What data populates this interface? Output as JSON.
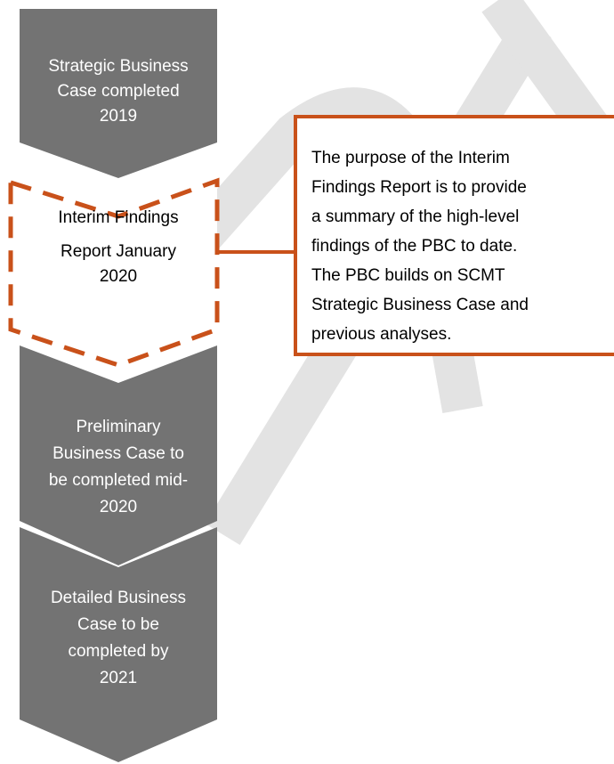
{
  "nodes": [
    {
      "lines": [
        "Strategic Business",
        "Case completed",
        "2019"
      ]
    },
    {
      "lines": [
        "Interim Findings",
        "Report January",
        "2020"
      ]
    },
    {
      "lines": [
        "Preliminary",
        "Business Case to",
        "be completed mid-",
        "2020"
      ]
    },
    {
      "lines": [
        "Detailed Business",
        "Case to be",
        "completed by",
        "2021"
      ]
    }
  ],
  "callout": {
    "lines": [
      "The purpose of the Interim",
      "Findings Report is to provide",
      "a summary of the high-level",
      "findings of the PBC to date.",
      "The PBC builds on SCMT",
      "Strategic Business Case and",
      "previous analyses."
    ]
  }
}
